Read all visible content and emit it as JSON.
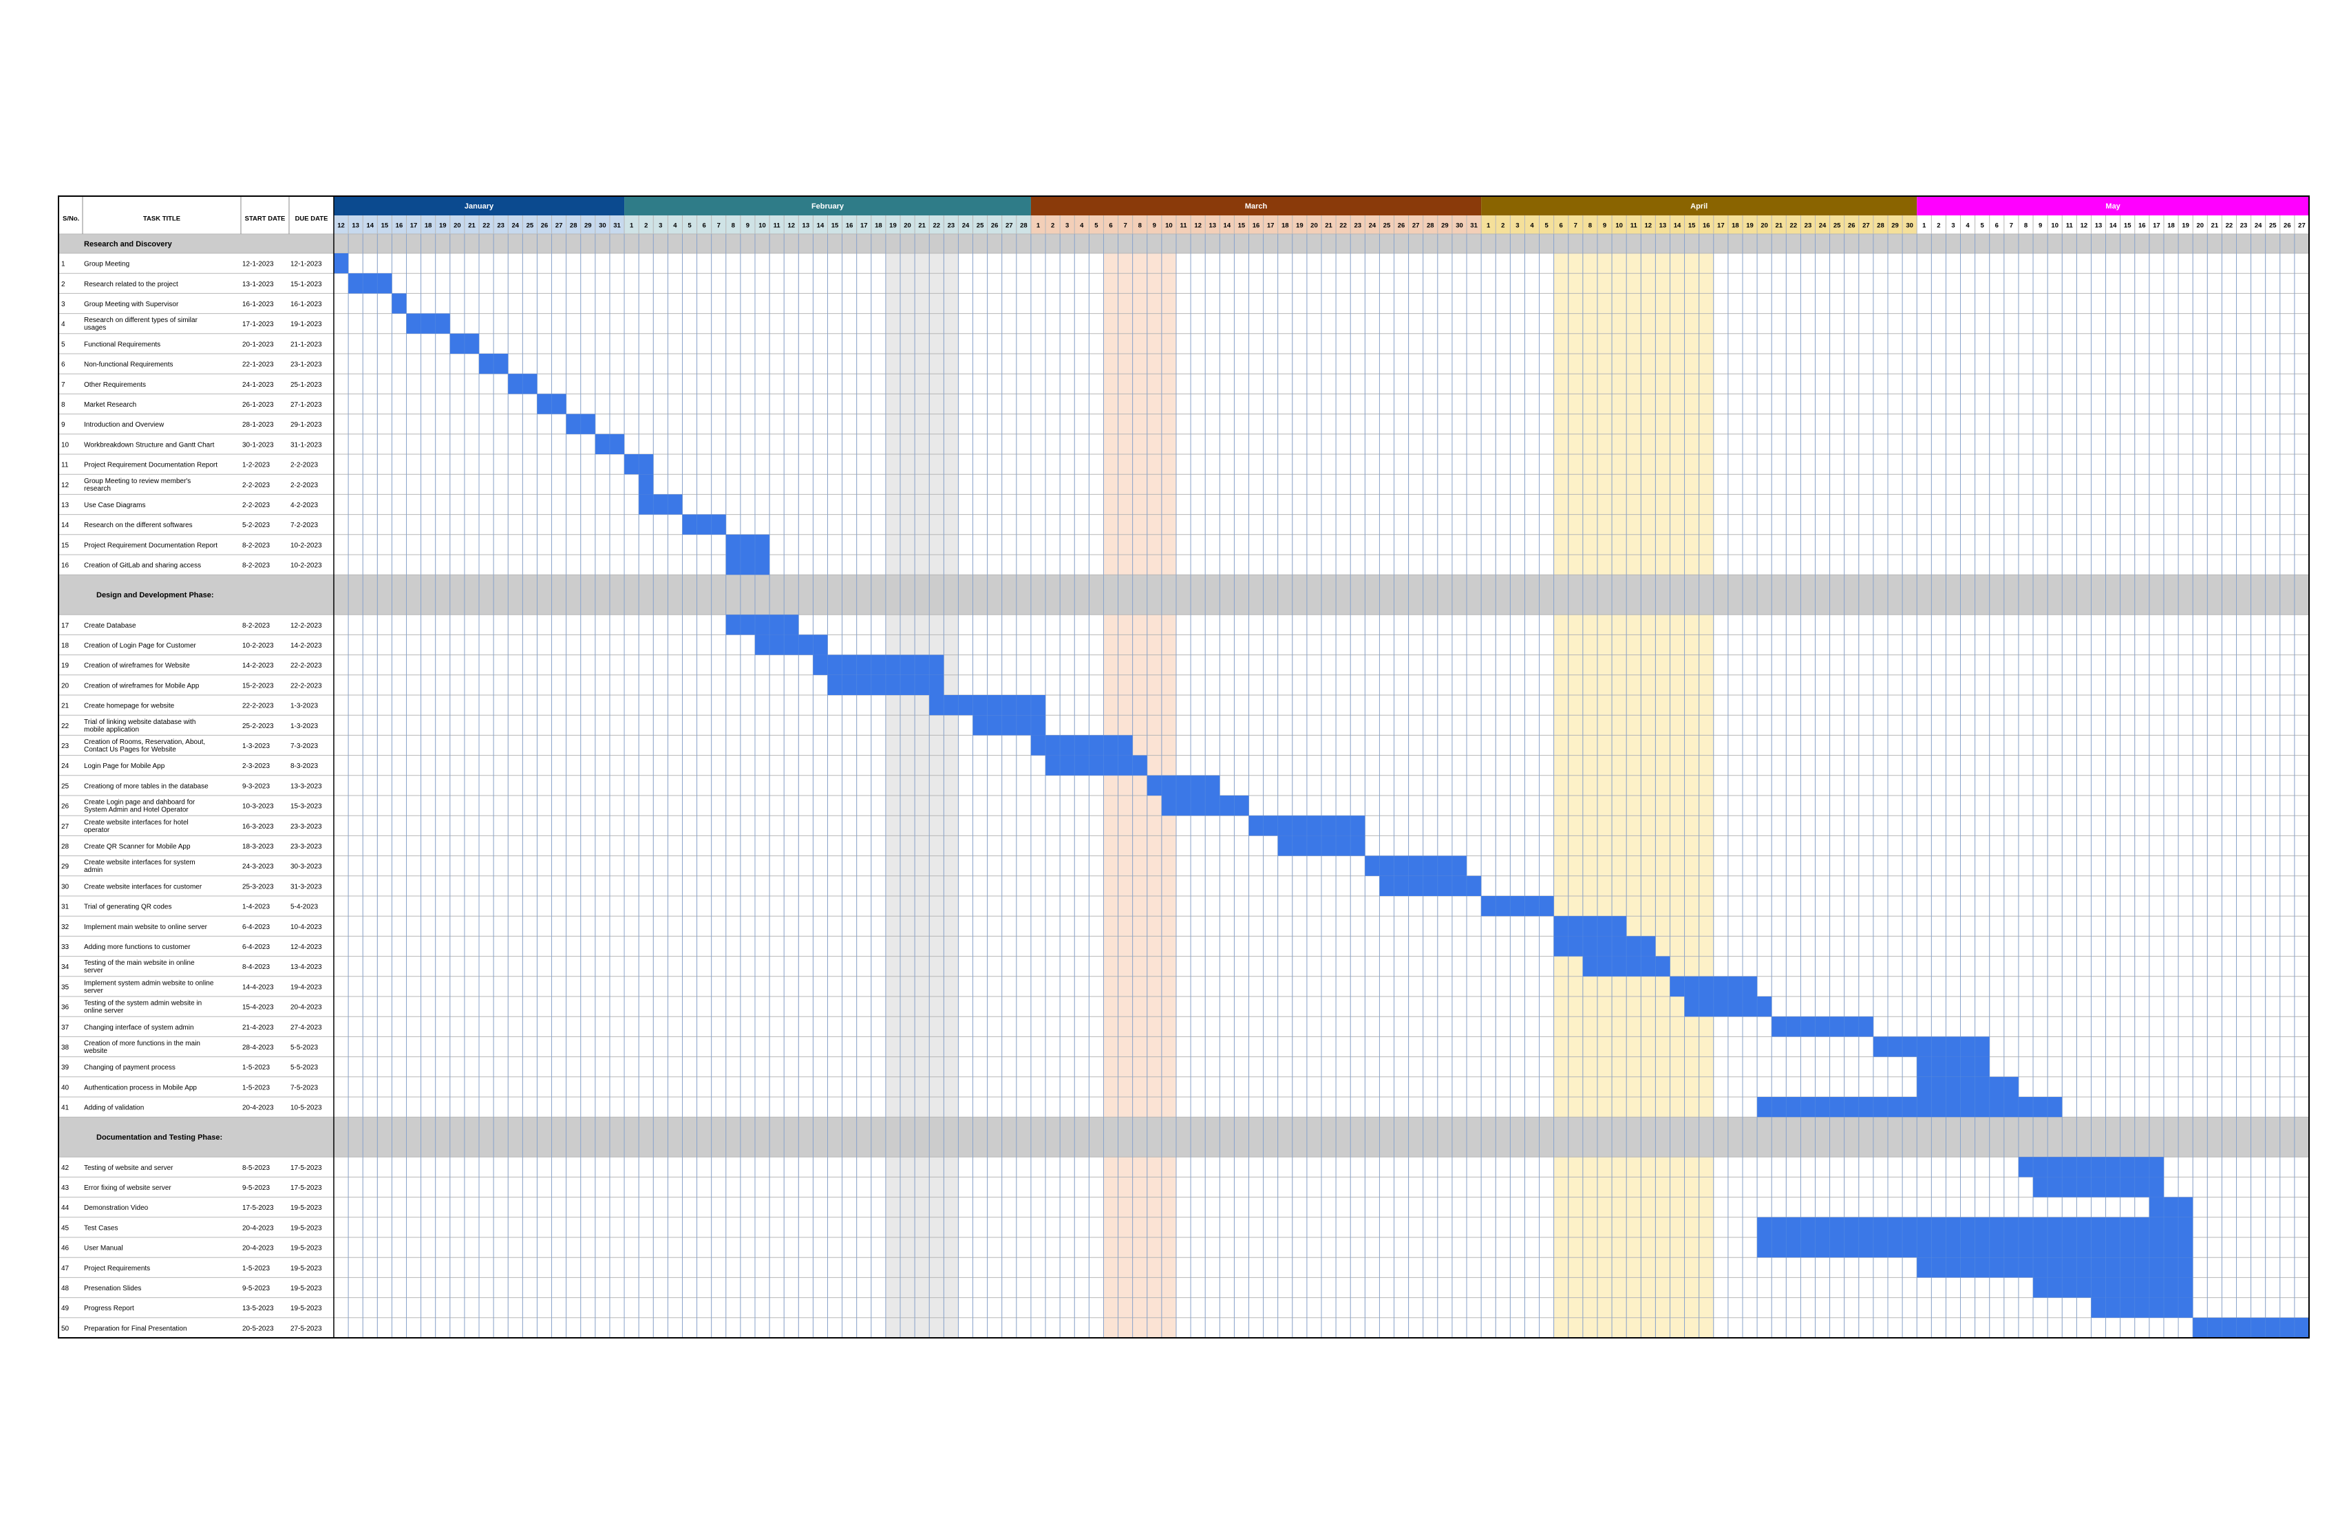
{
  "header": {
    "sno_label": "S/No.",
    "task_label": "TASK TITLE",
    "start_label": "START DATE",
    "due_label": "DUE DATE"
  },
  "months": [
    {
      "name": "January",
      "color": "#0b4a8f",
      "text_color": "#ffffff",
      "day_bg": "#c7d9ee",
      "first_day": 12,
      "last_day": 31
    },
    {
      "name": "February",
      "color": "#2f7c88",
      "text_color": "#ffffff",
      "day_bg": "#cfe3e6",
      "first_day": 1,
      "last_day": 28
    },
    {
      "name": "March",
      "color": "#8a3a0a",
      "text_color": "#ffffff",
      "day_bg": "#f3cfb8",
      "first_day": 1,
      "last_day": 31
    },
    {
      "name": "April",
      "color": "#8a6400",
      "text_color": "#ffffff",
      "day_bg": "#f5e09a",
      "first_day": 1,
      "last_day": 30
    },
    {
      "name": "May",
      "color": "#ff00ff",
      "text_color": "#ffffff",
      "day_bg": "#ffffff",
      "first_day": 1,
      "last_day": 27
    }
  ],
  "highlights": [
    {
      "from": "2023-02-19",
      "to": "2023-02-23",
      "color": "#e9e9e9"
    },
    {
      "from": "2023-03-06",
      "to": "2023-03-10",
      "color": "#fbe3d4"
    },
    {
      "from": "2023-04-06",
      "to": "2023-04-16",
      "color": "#fdf1c8"
    }
  ],
  "colors": {
    "bar": "#3b78e7",
    "section_bg": "#cccccc",
    "grid": "#b7b7b7",
    "border": "#000000"
  },
  "chart_data": {
    "type": "gantt",
    "x_range": [
      "2023-01-12",
      "2023-05-27"
    ],
    "sections": [
      {
        "title": "Research and Discovery",
        "tasks": [
          {
            "no": "1",
            "title": "Group Meeting",
            "start": "12-1-2023",
            "due": "12-1-2023"
          },
          {
            "no": "2",
            "title": "Research related to the project",
            "start": "13-1-2023",
            "due": "15-1-2023"
          },
          {
            "no": "3",
            "title": "Group Meeting with Supervisor",
            "start": "16-1-2023",
            "due": "16-1-2023"
          },
          {
            "no": "4",
            "title": "Research on different types of similar usages",
            "start": "17-1-2023",
            "due": "19-1-2023"
          },
          {
            "no": "5",
            "title": "Functional Requirements",
            "start": "20-1-2023",
            "due": "21-1-2023"
          },
          {
            "no": "6",
            "title": "Non-functional Requirements",
            "start": "22-1-2023",
            "due": "23-1-2023"
          },
          {
            "no": "7",
            "title": "Other Requirements",
            "start": "24-1-2023",
            "due": "25-1-2023"
          },
          {
            "no": "8",
            "title": "Market Research",
            "start": "26-1-2023",
            "due": "27-1-2023"
          },
          {
            "no": "9",
            "title": "Introduction and Overview",
            "start": "28-1-2023",
            "due": "29-1-2023"
          },
          {
            "no": "10",
            "title": "Workbreakdown Structure and Gantt Chart",
            "start": "30-1-2023",
            "due": "31-1-2023"
          },
          {
            "no": "11",
            "title": "Project Requirement Documentation Report",
            "start": "1-2-2023",
            "due": "2-2-2023"
          },
          {
            "no": "12",
            "title": "Group Meeting to review member's research",
            "start": "2-2-2023",
            "due": "2-2-2023"
          },
          {
            "no": "13",
            "title": "Use Case Diagrams",
            "start": "2-2-2023",
            "due": "4-2-2023"
          },
          {
            "no": "14",
            "title": "Research on the different softwares",
            "start": "5-2-2023",
            "due": "7-2-2023"
          },
          {
            "no": "15",
            "title": "Project Requirement Documentation Report",
            "start": "8-2-2023",
            "due": "10-2-2023"
          },
          {
            "no": "16",
            "title": "Creation of GitLab and sharing access",
            "start": "8-2-2023",
            "due": "10-2-2023"
          }
        ]
      },
      {
        "title": "Design and Development Phase:",
        "tasks": [
          {
            "no": "17",
            "title": "Create Database",
            "start": "8-2-2023",
            "due": "12-2-2023"
          },
          {
            "no": "18",
            "title": "Creation of Login Page for Customer",
            "start": "10-2-2023",
            "due": "14-2-2023"
          },
          {
            "no": "19",
            "title": "Creation of wireframes for Website",
            "start": "14-2-2023",
            "due": "22-2-2023"
          },
          {
            "no": "20",
            "title": "Creation of wireframes for Mobile App",
            "start": "15-2-2023",
            "due": "22-2-2023"
          },
          {
            "no": "21",
            "title": "Create homepage for website",
            "start": "22-2-2023",
            "due": "1-3-2023"
          },
          {
            "no": "22",
            "title": "Trial of linking website database with mobile application",
            "start": "25-2-2023",
            "due": "1-3-2023"
          },
          {
            "no": "23",
            "title": "Creation of Rooms, Reservation, About, Contact Us Pages for Website",
            "start": "1-3-2023",
            "due": "7-3-2023"
          },
          {
            "no": "24",
            "title": "Login Page for Mobile App",
            "start": "2-3-2023",
            "due": "8-3-2023"
          },
          {
            "no": "25",
            "title": "Creationg of more tables in the database",
            "start": "9-3-2023",
            "due": "13-3-2023"
          },
          {
            "no": "26",
            "title": "Create Login page and dahboard for System Admin and Hotel Operator",
            "start": "10-3-2023",
            "due": "15-3-2023"
          },
          {
            "no": "27",
            "title": "Create website interfaces for hotel operator",
            "start": "16-3-2023",
            "due": "23-3-2023"
          },
          {
            "no": "28",
            "title": "Create QR Scanner for Mobile App",
            "start": "18-3-2023",
            "due": "23-3-2023"
          },
          {
            "no": "29",
            "title": "Create website interfaces for system admin",
            "start": "24-3-2023",
            "due": "30-3-2023"
          },
          {
            "no": "30",
            "title": "Create website interfaces for customer",
            "start": "25-3-2023",
            "due": "31-3-2023"
          },
          {
            "no": "31",
            "title": "Trial of generating QR codes",
            "start": "1-4-2023",
            "due": "5-4-2023"
          },
          {
            "no": "32",
            "title": "Implement main website to online server",
            "start": "6-4-2023",
            "due": "10-4-2023"
          },
          {
            "no": "33",
            "title": "Adding more functions to customer",
            "start": "6-4-2023",
            "due": "12-4-2023"
          },
          {
            "no": "34",
            "title": "Testing of the main website in online server",
            "start": "8-4-2023",
            "due": "13-4-2023"
          },
          {
            "no": "35",
            "title": "Implement system admin website to online server",
            "start": "14-4-2023",
            "due": "19-4-2023"
          },
          {
            "no": "36",
            "title": "Testing of the system admin website in online server",
            "start": "15-4-2023",
            "due": "20-4-2023"
          },
          {
            "no": "37",
            "title": "Changing interface of system admin",
            "start": "21-4-2023",
            "due": "27-4-2023"
          },
          {
            "no": "38",
            "title": "Creation of more functions in the main website",
            "start": "28-4-2023",
            "due": "5-5-2023"
          },
          {
            "no": "39",
            "title": "Changing of payment process",
            "start": "1-5-2023",
            "due": "5-5-2023"
          },
          {
            "no": "40",
            "title": "Authentication process in Mobile App",
            "start": "1-5-2023",
            "due": "7-5-2023"
          },
          {
            "no": "41",
            "title": "Adding of validation",
            "start": "20-4-2023",
            "due": "10-5-2023"
          }
        ]
      },
      {
        "title": "Documentation and Testing Phase:",
        "tasks": [
          {
            "no": "42",
            "title": "Testing of website and server",
            "start": "8-5-2023",
            "due": "17-5-2023"
          },
          {
            "no": "43",
            "title": "Error fixing of website server",
            "start": "9-5-2023",
            "due": "17-5-2023"
          },
          {
            "no": "44",
            "title": "Demonstration Video",
            "start": "17-5-2023",
            "due": "19-5-2023"
          },
          {
            "no": "45",
            "title": "Test Cases",
            "start": "20-4-2023",
            "due": "19-5-2023"
          },
          {
            "no": "46",
            "title": "User Manual",
            "start": "20-4-2023",
            "due": "19-5-2023"
          },
          {
            "no": "47",
            "title": "Project Requirements",
            "start": "1-5-2023",
            "due": "19-5-2023"
          },
          {
            "no": "48",
            "title": "Presenation Slides",
            "start": "9-5-2023",
            "due": "19-5-2023"
          },
          {
            "no": "49",
            "title": "Progress Report",
            "start": "13-5-2023",
            "due": "19-5-2023"
          },
          {
            "no": "50",
            "title": "Preparation for Final Presentation",
            "start": "20-5-2023",
            "due": "27-5-2023"
          }
        ]
      }
    ]
  }
}
